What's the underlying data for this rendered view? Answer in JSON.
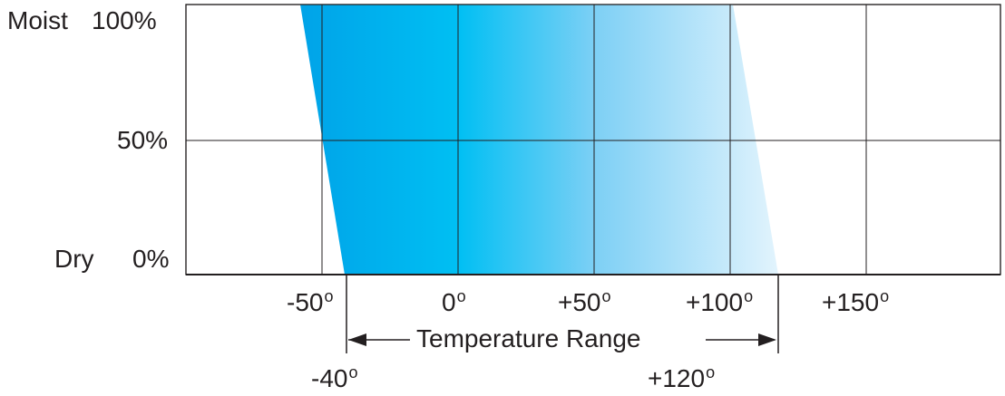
{
  "y_axis": {
    "labels": [
      {
        "word": "Moist",
        "value": "100%"
      },
      {
        "word": "",
        "value": "50%"
      },
      {
        "word": "Dry",
        "value": "0%"
      }
    ]
  },
  "x_axis": {
    "ticks": [
      {
        "text": "-50",
        "deg": "o"
      },
      {
        "text": "0",
        "deg": "o"
      },
      {
        "text": "+50",
        "deg": "o"
      },
      {
        "text": "+100",
        "deg": "o"
      },
      {
        "text": "+150",
        "deg": "o"
      }
    ]
  },
  "range": {
    "label": "Temperature Range",
    "min": {
      "text": "-40",
      "deg": "o"
    },
    "max": {
      "text": "+120",
      "deg": "o"
    }
  },
  "colors": {
    "band_dark": "#00a3e8",
    "band_mid": "#00bff3",
    "band_light": "#e3f4fd",
    "line": "#231f20"
  }
}
